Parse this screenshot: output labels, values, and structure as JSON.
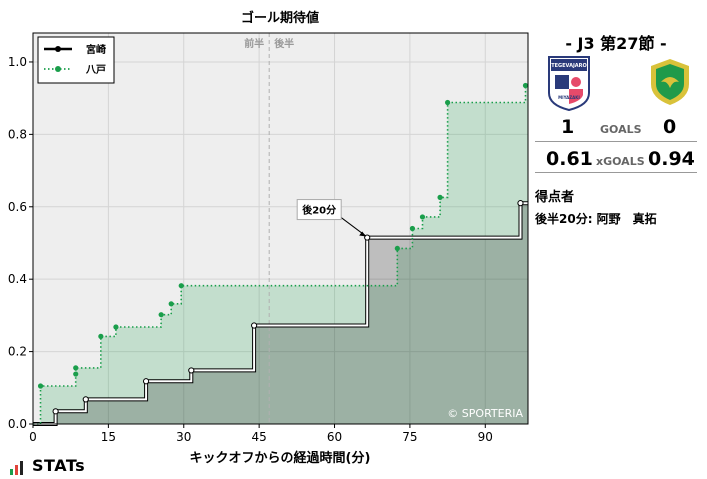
{
  "chart_data": {
    "type": "line",
    "step": true,
    "title": "ゴール期待値",
    "xlabel": "キックオフからの経過時間(分)",
    "ylabel": "",
    "xlim": [
      0,
      98.5
    ],
    "ylim": [
      0,
      1.08
    ],
    "xticks": [
      0,
      15,
      30,
      45,
      60,
      75,
      90
    ],
    "yticks": [
      0.0,
      0.2,
      0.4,
      0.6,
      0.8,
      1.0
    ],
    "ytick_labels": [
      "0.0",
      "0.2",
      "0.4",
      "0.6",
      "0.8",
      "1.0"
    ],
    "grid": true,
    "halftime_x": 47,
    "halftime_labels": [
      "前半",
      "後半"
    ],
    "legend": {
      "placement": "top-left"
    },
    "series": [
      {
        "name": "宮崎",
        "color": "#000000",
        "style": "solid",
        "points": [
          [
            0,
            0.0
          ],
          [
            4.5,
            0.035
          ],
          [
            10.5,
            0.068
          ],
          [
            22.5,
            0.118
          ],
          [
            31.5,
            0.148
          ],
          [
            44,
            0.272
          ],
          [
            66.5,
            0.515
          ],
          [
            97,
            0.61
          ]
        ]
      },
      {
        "name": "八戸",
        "color": "#1a9e4b",
        "style": "dotted",
        "points": [
          [
            0,
            0.0
          ],
          [
            1.5,
            0.105
          ],
          [
            8.5,
            0.138
          ],
          [
            8.5,
            0.155
          ],
          [
            13.5,
            0.242
          ],
          [
            16.5,
            0.268
          ],
          [
            25.5,
            0.302
          ],
          [
            27.5,
            0.332
          ],
          [
            29.5,
            0.382
          ],
          [
            72.5,
            0.485
          ],
          [
            75.5,
            0.54
          ],
          [
            77.5,
            0.572
          ],
          [
            81,
            0.626
          ],
          [
            82.5,
            0.888
          ],
          [
            98,
            0.935
          ]
        ]
      }
    ],
    "x_end": 98.5,
    "annotations": [
      {
        "text": "後20分",
        "x": 66.5,
        "y": 0.515
      }
    ],
    "watermark": "© SPORTERIA"
  },
  "match": {
    "title": "-  J3 第27節  -",
    "home_score": "1",
    "away_score": "0",
    "goals_label": "GOALS",
    "home_xg": "0.61",
    "away_xg": "0.94",
    "xg_label": "xGOALS",
    "scorers_heading": "得点者",
    "scorer_line": "後半20分: 阿野　真拓",
    "home_crest_text": "TEGEVAJARO",
    "home_crest_sub": "MIYAZAKI",
    "home_color": "#2a3a7a",
    "home_accent": "#e64a6a",
    "away_color": "#1f9a4a",
    "away_accent": "#d9c23a"
  },
  "branding": {
    "logo": "STATs"
  }
}
